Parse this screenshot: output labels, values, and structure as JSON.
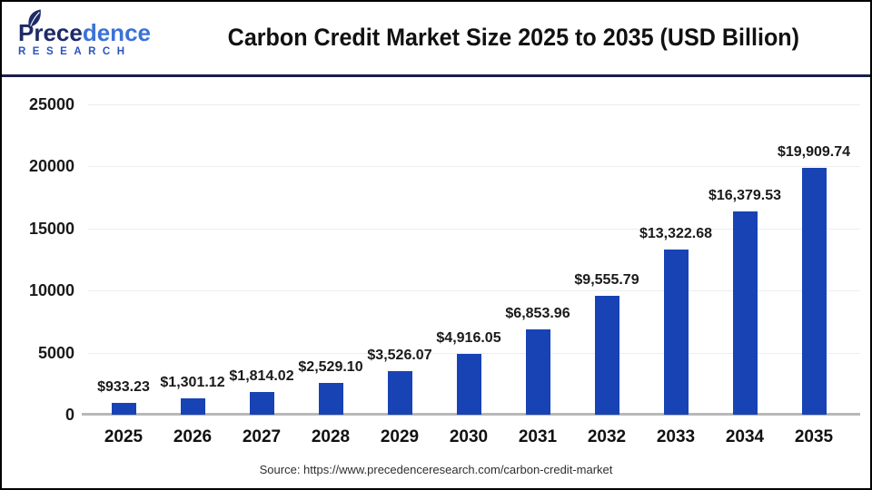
{
  "header": {
    "logo": {
      "brand_primary": "Prece",
      "brand_secondary": "dence",
      "subtitle": "RESEARCH",
      "leaf_icon_color": "#1d2b66"
    },
    "title": "Carbon Credit Market Size 2025 to 2035 (USD Billion)"
  },
  "chart_data": {
    "type": "bar",
    "title": "Carbon Credit Market Size 2025 to 2035 (USD Billion)",
    "categories": [
      "2025",
      "2026",
      "2027",
      "2028",
      "2029",
      "2030",
      "2031",
      "2032",
      "2033",
      "2034",
      "2035"
    ],
    "values": [
      933.23,
      1301.12,
      1814.02,
      2529.1,
      3526.07,
      4916.05,
      6853.96,
      9555.79,
      13322.68,
      16379.53,
      19909.74
    ],
    "value_labels": [
      "$933.23",
      "$1,301.12",
      "$1,814.02",
      "$2,529.10",
      "$3,526.07",
      "$4,916.05",
      "$6,853.96",
      "$9,555.79",
      "$13,322.68",
      "$16,379.53",
      "$19,909.74"
    ],
    "xlabel": "",
    "ylabel": "",
    "ylim": [
      0,
      25000
    ],
    "y_ticks": [
      0,
      5000,
      10000,
      15000,
      20000,
      25000
    ],
    "grid": true,
    "legend": "none",
    "bar_color": "#1843B5"
  },
  "footer": {
    "source": "Source: https://www.precedenceresearch.com/carbon-credit-market"
  },
  "colors": {
    "bar": "#1843B5",
    "divider": "#191d4e",
    "gridline": "#ededed",
    "axis_line": "#b8b8b8",
    "title_text": "#111111"
  }
}
